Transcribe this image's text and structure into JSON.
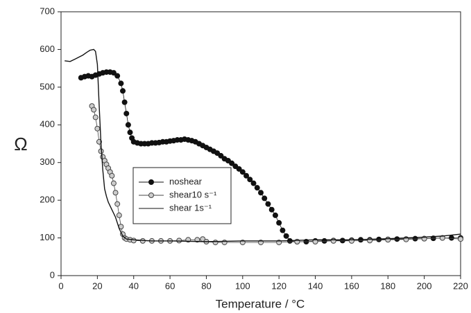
{
  "chart_data": {
    "type": "line",
    "xlabel": "Temperature / °C",
    "ylabel": "Ω",
    "xlim": [
      0,
      220
    ],
    "xticks": [
      0,
      20,
      40,
      60,
      80,
      100,
      120,
      140,
      160,
      180,
      200,
      220
    ],
    "ylim": [
      0,
      700
    ],
    "yticks": [
      0,
      100,
      200,
      300,
      400,
      500,
      600,
      700
    ],
    "grid": false,
    "legend": "center",
    "series": [
      {
        "name": "noshear",
        "color": "#111111",
        "marker": "filled",
        "x": [
          11,
          13,
          15,
          17,
          19,
          21,
          23,
          25,
          27,
          29,
          31,
          33,
          34,
          35,
          36,
          37,
          38,
          39,
          40,
          42,
          44,
          46,
          48,
          50,
          52,
          54,
          56,
          58,
          60,
          62,
          64,
          66,
          68,
          70,
          72,
          74,
          76,
          78,
          80,
          82,
          84,
          86,
          88,
          90,
          92,
          94,
          96,
          98,
          100,
          102,
          104,
          106,
          108,
          110,
          112,
          114,
          116,
          118,
          120,
          122,
          124,
          126,
          130,
          135,
          140,
          145,
          150,
          155,
          160,
          165,
          170,
          175,
          180,
          185,
          190,
          195,
          200,
          205,
          210,
          215,
          220
        ],
        "values": [
          525,
          528,
          530,
          528,
          532,
          535,
          538,
          540,
          540,
          538,
          530,
          510,
          490,
          460,
          430,
          400,
          380,
          365,
          355,
          352,
          350,
          350,
          350,
          352,
          352,
          353,
          355,
          355,
          357,
          358,
          360,
          360,
          362,
          360,
          358,
          355,
          350,
          345,
          340,
          335,
          330,
          325,
          318,
          310,
          305,
          298,
          290,
          283,
          275,
          265,
          255,
          245,
          233,
          220,
          205,
          190,
          175,
          160,
          140,
          120,
          105,
          92,
          90,
          90,
          92,
          92,
          93,
          93,
          94,
          95,
          95,
          96,
          96,
          97,
          97,
          98,
          98,
          99,
          100,
          100,
          100
        ]
      },
      {
        "name": "shear10 s⁻¹",
        "color": "#444444",
        "marker": "open",
        "x": [
          17,
          18,
          19,
          20,
          21,
          22,
          23,
          24,
          25,
          26,
          27,
          28,
          29,
          30,
          31,
          32,
          33,
          34,
          35,
          36,
          38,
          40,
          45,
          50,
          55,
          60,
          65,
          70,
          75,
          78,
          80,
          85,
          90,
          100,
          110,
          120,
          130,
          140,
          150,
          160,
          170,
          180,
          190,
          200,
          210,
          220
        ],
        "values": [
          450,
          440,
          420,
          390,
          355,
          330,
          315,
          305,
          295,
          285,
          275,
          265,
          245,
          220,
          190,
          160,
          130,
          110,
          100,
          97,
          95,
          93,
          92,
          92,
          92,
          92,
          93,
          95,
          95,
          97,
          90,
          88,
          88,
          88,
          88,
          88,
          90,
          90,
          92,
          92,
          93,
          95,
          96,
          98,
          100,
          97
        ]
      },
      {
        "name": "shear 1s⁻¹",
        "color": "#111111",
        "marker": "none",
        "x": [
          2,
          5,
          8,
          10,
          12,
          14,
          16,
          18,
          19,
          20,
          21,
          22,
          23,
          24,
          25,
          26,
          28,
          30,
          32,
          34,
          36,
          40,
          50,
          60,
          80,
          100,
          120,
          140,
          160,
          180,
          200,
          210,
          220
        ],
        "values": [
          570,
          568,
          575,
          580,
          585,
          592,
          598,
          600,
          595,
          560,
          450,
          350,
          280,
          230,
          210,
          195,
          175,
          155,
          125,
          105,
          97,
          95,
          92,
          92,
          90,
          92,
          92,
          95,
          95,
          98,
          102,
          105,
          110
        ]
      }
    ]
  }
}
